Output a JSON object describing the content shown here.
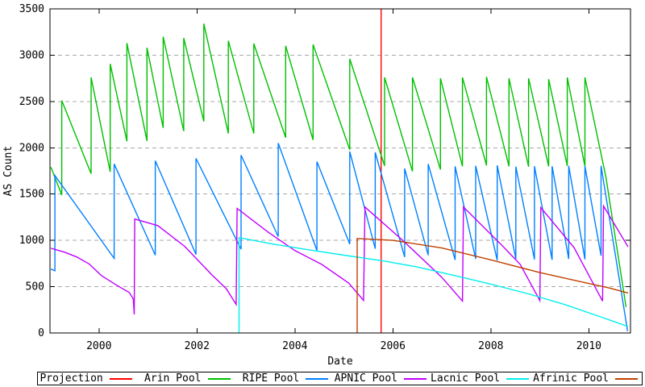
{
  "chart_data": {
    "type": "line",
    "title": "",
    "xlabel": "Date",
    "ylabel": "AS Count",
    "xlim": [
      1999.0,
      2010.85
    ],
    "ylim": [
      0,
      3500
    ],
    "xticks": [
      2000,
      2002,
      2004,
      2006,
      2008,
      2010
    ],
    "yticks": [
      0,
      500,
      1000,
      1500,
      2000,
      2500,
      3000,
      3500
    ],
    "grid": {
      "horizontal": true,
      "vertical": false,
      "style": "dashed",
      "color": "#a8a8a8"
    },
    "axis_color": "#000000",
    "legend_position": "bottom",
    "series": [
      {
        "name": "Projection",
        "color": "#ff0000",
        "points": [
          [
            2005.76,
            0
          ],
          [
            2005.76,
            3500
          ]
        ]
      },
      {
        "name": "Arin Pool",
        "color": "#00c000",
        "points": [
          [
            1999.02,
            1790
          ],
          [
            1999.24,
            1490
          ],
          [
            1999.24,
            2510
          ],
          [
            1999.84,
            1720
          ],
          [
            1999.84,
            2760
          ],
          [
            2000.23,
            1740
          ],
          [
            2000.23,
            2905
          ],
          [
            2000.57,
            2070
          ],
          [
            2000.57,
            3130
          ],
          [
            2000.98,
            2075
          ],
          [
            2000.98,
            3080
          ],
          [
            2001.31,
            2215
          ],
          [
            2001.31,
            3200
          ],
          [
            2001.73,
            2180
          ],
          [
            2001.73,
            3185
          ],
          [
            2002.14,
            2285
          ],
          [
            2002.14,
            3340
          ],
          [
            2002.64,
            2155
          ],
          [
            2002.64,
            3155
          ],
          [
            2003.16,
            2155
          ],
          [
            2003.16,
            3125
          ],
          [
            2003.81,
            2110
          ],
          [
            2003.81,
            3100
          ],
          [
            2004.37,
            2085
          ],
          [
            2004.37,
            3115
          ],
          [
            2005.12,
            1980
          ],
          [
            2005.12,
            2960
          ],
          [
            2005.83,
            1805
          ],
          [
            2005.83,
            2760
          ],
          [
            2006.4,
            1745
          ],
          [
            2006.4,
            2760
          ],
          [
            2006.97,
            1765
          ],
          [
            2006.97,
            2750
          ],
          [
            2007.42,
            1800
          ],
          [
            2007.42,
            2760
          ],
          [
            2007.91,
            1810
          ],
          [
            2007.91,
            2765
          ],
          [
            2008.37,
            1800
          ],
          [
            2008.37,
            2750
          ],
          [
            2008.77,
            1795
          ],
          [
            2008.77,
            2750
          ],
          [
            2009.18,
            1800
          ],
          [
            2009.18,
            2740
          ],
          [
            2009.56,
            1805
          ],
          [
            2009.56,
            2760
          ],
          [
            2009.92,
            1800
          ],
          [
            2009.92,
            2760
          ],
          [
            2010.35,
            1680
          ],
          [
            2010.76,
            280
          ]
        ]
      },
      {
        "name": "RIPE Pool",
        "color": "#0080ff",
        "points": [
          [
            1999.02,
            690
          ],
          [
            1999.1,
            672
          ],
          [
            1999.1,
            1700
          ],
          [
            2000.31,
            805
          ],
          [
            2000.31,
            1825
          ],
          [
            2001.15,
            840
          ],
          [
            2001.15,
            1860
          ],
          [
            2001.98,
            848
          ],
          [
            2001.98,
            1885
          ],
          [
            2002.9,
            905
          ],
          [
            2002.9,
            1920
          ],
          [
            2003.66,
            1040
          ],
          [
            2003.66,
            2050
          ],
          [
            2004.45,
            890
          ],
          [
            2004.45,
            1850
          ],
          [
            2005.12,
            960
          ],
          [
            2005.12,
            1960
          ],
          [
            2005.64,
            910
          ],
          [
            2005.64,
            1950
          ],
          [
            2006.24,
            820
          ],
          [
            2006.24,
            1775
          ],
          [
            2006.72,
            840
          ],
          [
            2006.72,
            1825
          ],
          [
            2007.27,
            790
          ],
          [
            2007.27,
            1800
          ],
          [
            2007.69,
            800
          ],
          [
            2007.69,
            1805
          ],
          [
            2008.13,
            785
          ],
          [
            2008.13,
            1810
          ],
          [
            2008.51,
            800
          ],
          [
            2008.51,
            1795
          ],
          [
            2008.89,
            795
          ],
          [
            2008.89,
            1800
          ],
          [
            2009.25,
            790
          ],
          [
            2009.25,
            1800
          ],
          [
            2009.59,
            800
          ],
          [
            2009.59,
            1805
          ],
          [
            2009.92,
            795
          ],
          [
            2009.92,
            1800
          ],
          [
            2010.25,
            835
          ],
          [
            2010.25,
            1806
          ],
          [
            2010.79,
            20
          ]
        ]
      },
      {
        "name": "APNIC Pool",
        "color": "#c000ff",
        "points": [
          [
            1999.02,
            915
          ],
          [
            1999.3,
            872
          ],
          [
            1999.55,
            820
          ],
          [
            1999.8,
            745
          ],
          [
            2000.05,
            620
          ],
          [
            2000.35,
            520
          ],
          [
            2000.62,
            436
          ],
          [
            2000.7,
            368
          ],
          [
            2000.72,
            200
          ],
          [
            2000.73,
            1230
          ],
          [
            2001.2,
            1160
          ],
          [
            2001.75,
            935
          ],
          [
            2002.3,
            630
          ],
          [
            2002.6,
            478
          ],
          [
            2002.8,
            308
          ],
          [
            2002.82,
            1345
          ],
          [
            2003.45,
            1090
          ],
          [
            2004.0,
            890
          ],
          [
            2004.55,
            740
          ],
          [
            2005.1,
            538
          ],
          [
            2005.4,
            352
          ],
          [
            2005.43,
            1360
          ],
          [
            2006.2,
            1000
          ],
          [
            2007.0,
            600
          ],
          [
            2007.42,
            345
          ],
          [
            2007.44,
            1360
          ],
          [
            2008.2,
            960
          ],
          [
            2008.6,
            740
          ],
          [
            2009.0,
            350
          ],
          [
            2009.02,
            1353
          ],
          [
            2009.7,
            920
          ],
          [
            2010.28,
            345
          ],
          [
            2010.3,
            1370
          ],
          [
            2010.8,
            930
          ]
        ]
      },
      {
        "name": "Lacnic Pool",
        "color": "#00eeee",
        "points": [
          [
            2002.86,
            0
          ],
          [
            2002.86,
            1030
          ],
          [
            2003.5,
            965
          ],
          [
            2004.2,
            905
          ],
          [
            2005.0,
            840
          ],
          [
            2005.8,
            778
          ],
          [
            2006.5,
            712
          ],
          [
            2007.2,
            628
          ],
          [
            2008.0,
            528
          ],
          [
            2008.8,
            418
          ],
          [
            2009.5,
            308
          ],
          [
            2010.2,
            182
          ],
          [
            2010.8,
            70
          ]
        ]
      },
      {
        "name": "Afrinic Pool",
        "color": "#c04000",
        "points": [
          [
            2005.27,
            0
          ],
          [
            2005.27,
            1020
          ],
          [
            2006.0,
            1000
          ],
          [
            2007.0,
            918
          ],
          [
            2008.0,
            790
          ],
          [
            2009.0,
            652
          ],
          [
            2009.8,
            558
          ],
          [
            2010.4,
            488
          ],
          [
            2010.8,
            432
          ]
        ]
      }
    ]
  }
}
